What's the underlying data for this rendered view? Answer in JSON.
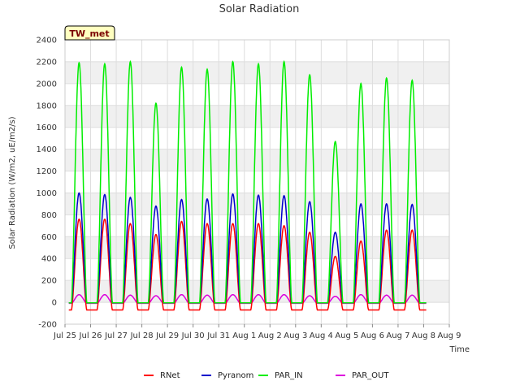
{
  "chart_data": {
    "type": "line",
    "title": "Solar Radiation",
    "xlabel": "Time",
    "ylabel": "Solar Radiation (W/m2, uE/m2/s)",
    "badge": "TW_met",
    "ylim": [
      -200,
      2400
    ],
    "yticks": [
      -200,
      0,
      200,
      400,
      600,
      800,
      1000,
      1200,
      1400,
      1600,
      1800,
      2000,
      2200,
      2400
    ],
    "xlim": [
      0,
      15
    ],
    "xticks": [
      {
        "pos": 0,
        "label": "Jul 25"
      },
      {
        "pos": 1,
        "label": "Jul 26"
      },
      {
        "pos": 2,
        "label": "Jul 27"
      },
      {
        "pos": 3,
        "label": "Jul 28"
      },
      {
        "pos": 4,
        "label": "Jul 29"
      },
      {
        "pos": 5,
        "label": "Jul 30"
      },
      {
        "pos": 6,
        "label": "Jul 31"
      },
      {
        "pos": 7,
        "label": "Aug 1"
      },
      {
        "pos": 8,
        "label": "Aug 2"
      },
      {
        "pos": 9,
        "label": "Aug 3"
      },
      {
        "pos": 10,
        "label": "Aug 4"
      },
      {
        "pos": 11,
        "label": "Aug 5"
      },
      {
        "pos": 12,
        "label": "Aug 6"
      },
      {
        "pos": 13,
        "label": "Aug 7"
      },
      {
        "pos": 14,
        "label": "Aug 8"
      },
      {
        "pos": 15,
        "label": "Aug 9"
      }
    ],
    "grid": true,
    "background_bands": true,
    "legend_position": "bottom",
    "daily_peaks": {
      "days": [
        "Jul 26",
        "Jul 27",
        "Jul 28",
        "Jul 29",
        "Jul 30",
        "Jul 31",
        "Aug 1",
        "Aug 2",
        "Aug 3",
        "Aug 4",
        "Aug 5",
        "Aug 6",
        "Aug 7",
        "Aug 8"
      ],
      "noon_x": [
        0.55,
        1.55,
        2.55,
        3.55,
        4.55,
        5.55,
        6.55,
        7.55,
        8.55,
        9.55,
        10.55,
        11.55,
        12.55,
        13.55
      ],
      "RNet": [
        760,
        760,
        720,
        620,
        740,
        720,
        720,
        720,
        700,
        640,
        420,
        560,
        660,
        660
      ],
      "Pyranom": [
        1000,
        985,
        960,
        880,
        940,
        945,
        990,
        980,
        975,
        920,
        640,
        900,
        900,
        895
      ],
      "PAR_IN": [
        2190,
        2180,
        2200,
        1820,
        2150,
        2130,
        2200,
        2180,
        2200,
        2080,
        1470,
        2000,
        2050,
        2030
      ],
      "PAR_OUT": [
        70,
        70,
        65,
        60,
        70,
        65,
        70,
        70,
        70,
        60,
        55,
        70,
        65,
        65
      ]
    },
    "night_values": {
      "RNet": -70,
      "Pyranom": -5,
      "PAR_IN": -5,
      "PAR_OUT": -10
    },
    "series": [
      {
        "name": "RNet",
        "color": "#ff0000"
      },
      {
        "name": "Pyranom",
        "color": "#0000cc"
      },
      {
        "name": "PAR_IN",
        "color": "#00ee00"
      },
      {
        "name": "PAR_OUT",
        "color": "#dd00dd"
      }
    ]
  }
}
